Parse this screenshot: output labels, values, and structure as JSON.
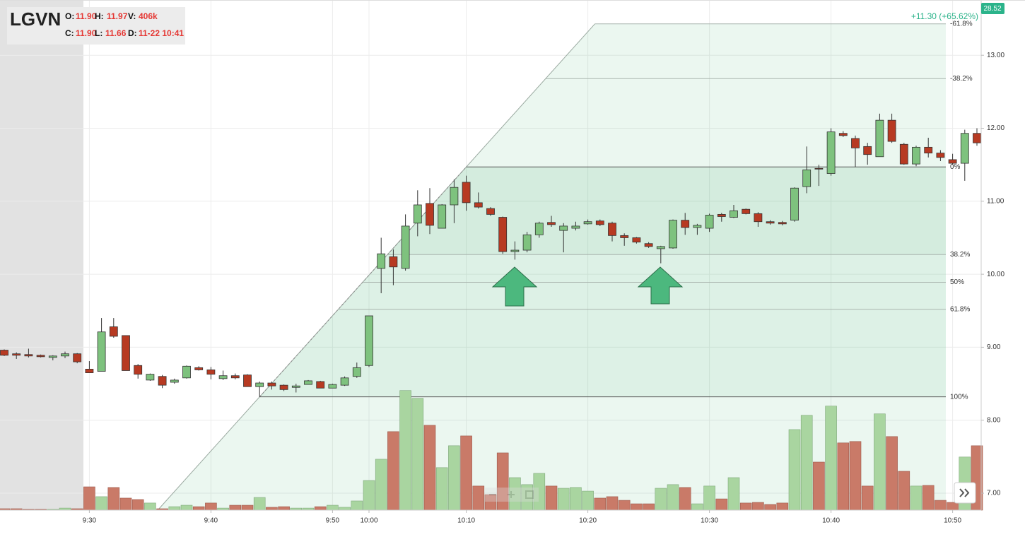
{
  "chart_data": {
    "type": "candlestick",
    "ticker": "LGVN",
    "info": [
      {
        "label": "O:",
        "value": "11.90"
      },
      {
        "label": "H:",
        "value": "11.97"
      },
      {
        "label": "V:",
        "value": "406k"
      },
      {
        "label": "C:",
        "value": "11.90"
      },
      {
        "label": "L:",
        "value": "11.66"
      },
      {
        "label": "D:",
        "value": "11-22 10:41"
      }
    ],
    "change_label": "+11.30 (+65.62%)",
    "badge": "28.52",
    "categories": [
      null,
      null,
      null,
      null,
      null,
      null,
      null,
      "9:30",
      null,
      null,
      null,
      null,
      null,
      null,
      null,
      null,
      null,
      "9:40",
      null,
      null,
      null,
      null,
      null,
      null,
      null,
      null,
      null,
      "9:50",
      null,
      null,
      "10:00",
      null,
      null,
      null,
      null,
      null,
      null,
      null,
      "10:10",
      null,
      null,
      null,
      null,
      null,
      null,
      null,
      null,
      null,
      "10:20",
      null,
      null,
      null,
      null,
      null,
      null,
      null,
      null,
      null,
      "10:30",
      null,
      null,
      null,
      null,
      null,
      null,
      null,
      null,
      null,
      "10:40",
      null,
      null,
      null,
      null,
      null,
      null,
      null,
      null,
      null,
      "10:50",
      null,
      null
    ],
    "open": [
      8.96,
      8.91,
      8.9,
      8.89,
      8.86,
      8.88,
      8.91,
      8.7,
      8.67,
      9.28,
      9.16,
      8.75,
      8.55,
      8.6,
      8.52,
      8.58,
      8.72,
      8.69,
      8.57,
      8.61,
      8.62,
      8.46,
      8.51,
      8.48,
      8.45,
      8.49,
      8.53,
      8.44,
      8.48,
      8.6,
      8.75,
      10.08,
      10.24,
      10.08,
      10.7,
      10.97,
      10.63,
      10.95,
      11.26,
      10.98,
      10.9,
      10.78,
      10.31,
      10.33,
      10.54,
      10.71,
      10.6,
      10.63,
      10.69,
      10.73,
      10.7,
      10.53,
      10.5,
      10.42,
      10.35,
      10.36,
      10.74,
      10.64,
      10.63,
      10.82,
      10.78,
      10.89,
      10.83,
      10.72,
      10.71,
      10.74,
      11.2,
      11.45,
      11.38,
      11.93,
      11.86,
      11.75,
      11.61,
      12.11,
      11.78,
      11.51,
      11.74,
      11.66,
      11.57,
      11.52,
      11.93
    ],
    "high": [
      8.97,
      8.93,
      8.98,
      8.9,
      8.89,
      8.94,
      8.92,
      8.81,
      9.4,
      9.4,
      9.16,
      8.77,
      8.64,
      8.62,
      8.57,
      8.75,
      8.74,
      8.73,
      8.68,
      8.64,
      8.63,
      8.53,
      8.53,
      8.49,
      8.5,
      8.55,
      8.54,
      8.5,
      8.6,
      8.79,
      9.43,
      10.5,
      10.34,
      10.82,
      11.15,
      11.18,
      10.96,
      11.3,
      11.35,
      11.12,
      10.92,
      10.79,
      10.45,
      10.58,
      10.72,
      10.8,
      10.7,
      10.72,
      10.75,
      10.75,
      10.72,
      10.56,
      10.51,
      10.44,
      10.39,
      10.75,
      10.84,
      10.69,
      10.83,
      10.84,
      10.95,
      10.9,
      10.85,
      10.74,
      10.73,
      11.19,
      11.75,
      11.5,
      12.0,
      11.96,
      11.9,
      11.8,
      12.2,
      12.2,
      11.8,
      11.76,
      11.87,
      11.7,
      11.65,
      11.98,
      12.0
    ],
    "low": [
      8.88,
      8.84,
      8.86,
      8.86,
      8.82,
      8.85,
      8.78,
      8.65,
      8.67,
      9.13,
      8.68,
      8.57,
      8.54,
      8.44,
      8.5,
      8.57,
      8.68,
      8.56,
      8.55,
      8.56,
      8.46,
      8.32,
      8.42,
      8.4,
      8.38,
      8.49,
      8.44,
      8.44,
      8.47,
      8.58,
      8.73,
      9.74,
      9.85,
      10.05,
      10.52,
      10.55,
      10.63,
      10.7,
      10.87,
      10.9,
      10.8,
      10.28,
      10.2,
      10.3,
      10.5,
      10.65,
      10.3,
      10.6,
      10.68,
      10.66,
      10.45,
      10.39,
      10.42,
      10.36,
      10.15,
      10.35,
      10.54,
      10.54,
      10.58,
      10.72,
      10.77,
      10.82,
      10.65,
      10.68,
      10.67,
      10.72,
      11.11,
      11.21,
      11.35,
      11.88,
      11.47,
      11.5,
      11.61,
      11.8,
      11.5,
      11.48,
      11.6,
      11.55,
      11.5,
      11.28,
      11.76
    ],
    "close": [
      8.89,
      8.89,
      8.88,
      8.87,
      8.88,
      8.91,
      8.8,
      8.65,
      9.21,
      9.15,
      8.68,
      8.63,
      8.63,
      8.48,
      8.55,
      8.74,
      8.69,
      8.63,
      8.61,
      8.58,
      8.46,
      8.51,
      8.47,
      8.42,
      8.47,
      8.54,
      8.44,
      8.49,
      8.58,
      8.72,
      9.43,
      10.28,
      10.1,
      10.66,
      10.95,
      10.67,
      10.95,
      11.19,
      10.98,
      10.92,
      10.82,
      10.31,
      10.33,
      10.54,
      10.7,
      10.68,
      10.66,
      10.66,
      10.72,
      10.68,
      10.53,
      10.5,
      10.44,
      10.38,
      10.38,
      10.74,
      10.64,
      10.67,
      10.81,
      10.79,
      10.87,
      10.83,
      10.72,
      10.7,
      10.69,
      11.18,
      11.43,
      11.44,
      11.95,
      11.9,
      11.73,
      11.64,
      12.11,
      11.82,
      11.51,
      11.74,
      11.66,
      11.6,
      11.52,
      11.93,
      11.8
    ],
    "volume": [
      9,
      9,
      5,
      5,
      5,
      13,
      9,
      147,
      85,
      143,
      76,
      67,
      45,
      9,
      22,
      31,
      22,
      45,
      13,
      31,
      31,
      80,
      18,
      22,
      13,
      13,
      22,
      31,
      18,
      58,
      187,
      321,
      495,
      754,
      705,
      535,
      268,
      406,
      468,
      152,
      98,
      361,
      205,
      161,
      232,
      152,
      138,
      143,
      120,
      76,
      85,
      62,
      40,
      40,
      138,
      161,
      143,
      40,
      152,
      71,
      205,
      45,
      49,
      36,
      45,
      508,
      598,
      303,
      656,
      424,
      433,
      152,
      607,
      464,
      245,
      152,
      156,
      62,
      49,
      335,
      406
    ],
    "volume_lim": [
      0,
      3216
    ],
    "ylim": [
      6.768,
      13.757
    ],
    "yticks": [
      {
        "value": 7,
        "label": "7.00"
      },
      {
        "value": 8,
        "label": "8.00"
      },
      {
        "value": 9,
        "label": "9.00"
      },
      {
        "value": 10,
        "label": "10.00"
      },
      {
        "value": 11,
        "label": "11.00"
      },
      {
        "value": 12,
        "label": "12.00"
      },
      {
        "value": 13,
        "label": "13.00"
      }
    ],
    "grid": true,
    "up_color": "#7ec27e",
    "down_color": "#b73a22",
    "volume_up_color": "#a9d5a0",
    "volume_down_color": "#c97a68",
    "fib_color": "#3fae6e",
    "fib": {
      "levels": [
        {
          "value": 13.43,
          "label": "-61.8%"
        },
        {
          "value": 12.68,
          "label": "-38.2%"
        },
        {
          "value": 11.47,
          "label": "0%"
        },
        {
          "value": 10.27,
          "label": "38.2%"
        },
        {
          "value": 9.89,
          "label": "50%"
        },
        {
          "value": 9.52,
          "label": "61.8%"
        },
        {
          "value": 8.32,
          "label": "100%"
        }
      ]
    }
  }
}
